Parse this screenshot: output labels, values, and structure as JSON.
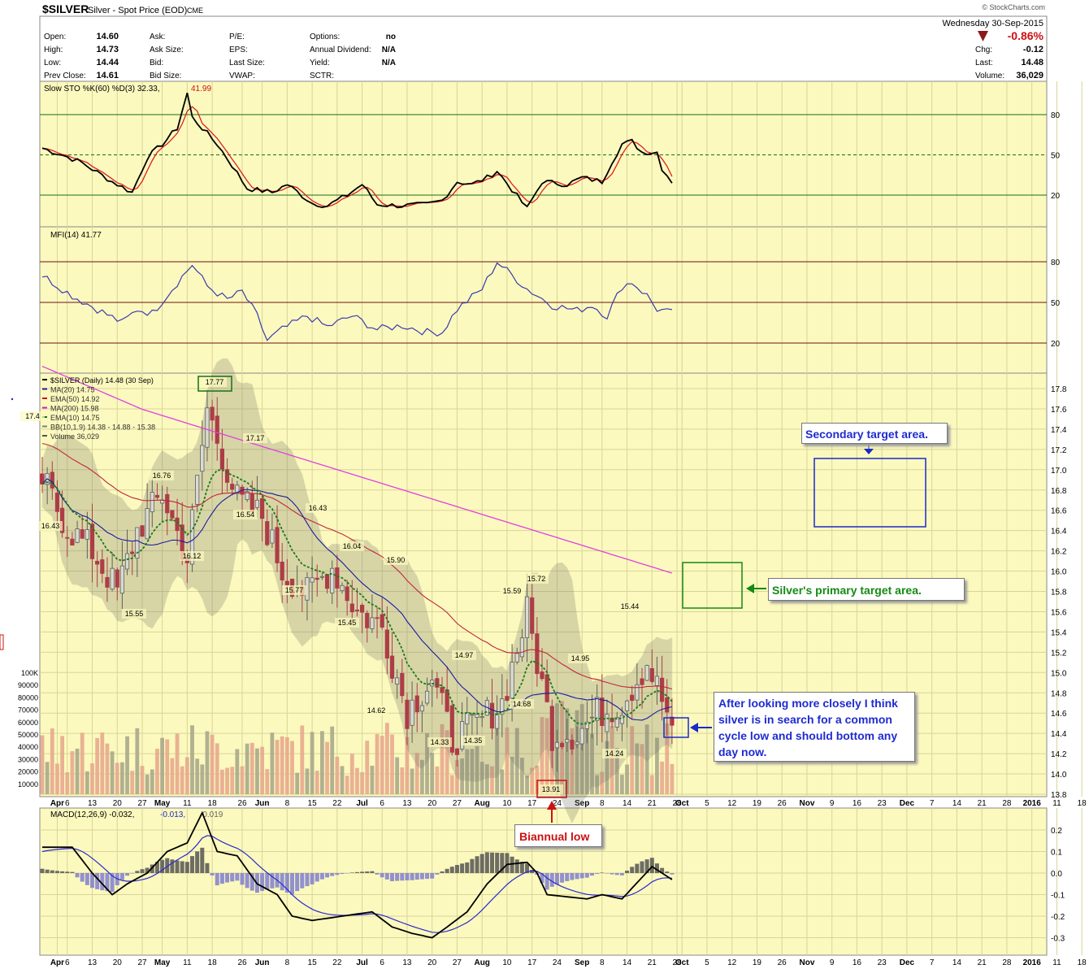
{
  "header": {
    "symbol": "$SILVER",
    "name": "Silver - Spot Price (EOD)",
    "exchange": "CME",
    "date_line": "Wednesday  30-Sep-2015",
    "watermark": "© StockCharts.com",
    "change_pct": "-0.86%",
    "quote_left": [
      {
        "label": "Open:",
        "value": "14.60"
      },
      {
        "label": "High:",
        "value": "14.73"
      },
      {
        "label": "Low:",
        "value": "14.44"
      },
      {
        "label": "Prev Close:",
        "value": "14.61"
      }
    ],
    "quote_mid": [
      "Ask:",
      "Ask Size:",
      "Bid:",
      "Bid Size:"
    ],
    "quote_mid2": [
      "P/E:",
      "EPS:",
      "Last Size:",
      "VWAP:"
    ],
    "quote_right": [
      {
        "label": "Options:",
        "value": "no"
      },
      {
        "label": "Annual Dividend:",
        "value": "N/A"
      },
      {
        "label": "Yield:",
        "value": "N/A"
      },
      {
        "label": "SCTR:",
        "value": ""
      }
    ],
    "quote_far": [
      {
        "label": "Chg:",
        "value": "-0.12"
      },
      {
        "label": "Last:",
        "value": "14.48"
      },
      {
        "label": "Volume:",
        "value": "36,029"
      }
    ]
  },
  "panels": {
    "sto": {
      "label": "Slow STO %K(60) %D(3) 32.33,",
      "label2": "41.99",
      "ticks": [
        "80",
        "50",
        "20"
      ]
    },
    "mfi": {
      "label": "MFI(14) 41.77",
      "ticks": [
        "80",
        "50",
        "20"
      ]
    },
    "main": {
      "legend": [
        {
          "text": "$SILVER (Daily) 14.48 (30 Sep)",
          "color": "#000000"
        },
        {
          "text": "MA(20) 14.75",
          "color": "#1a1aa0"
        },
        {
          "text": "EMA(50) 14.92",
          "color": "#c01a1a"
        },
        {
          "text": "MA(200) 15.98",
          "color": "#d020d0"
        },
        {
          "text": "EMA(10) 14.75",
          "color": "#167016"
        },
        {
          "text": "BB(10,1.9) 14.38 - 14.88 - 15.38",
          "color": "#808080"
        },
        {
          "text": "Volume 36,029",
          "color": "#555555"
        }
      ],
      "price_ticks": [
        "17.8",
        "17.6",
        "17.4",
        "17.2",
        "17.0",
        "16.8",
        "16.6",
        "16.4",
        "16.2",
        "16.0",
        "15.8",
        "15.6",
        "15.4",
        "15.2",
        "15.0",
        "14.8",
        "14.6",
        "14.4",
        "14.2",
        "14.0",
        "13.8"
      ],
      "volume_ticks": [
        "100K",
        "90000",
        "80000",
        "70000",
        "60000",
        "50000",
        "40000",
        "30000",
        "20000",
        "10000"
      ],
      "price_labels": [
        "16.43",
        "16.76",
        "15.55",
        "17.77",
        "16.12",
        "17.17",
        "16.54",
        "16.43",
        "15.77",
        "16.04",
        "15.45",
        "15.90",
        "14.62",
        "14.33",
        "14.97",
        "14.35",
        "15.59",
        "15.72",
        "14.68",
        "13.91",
        "14.95",
        "15.44",
        "14.24",
        "17.4"
      ]
    },
    "macd": {
      "label": "MACD(12,26,9) -0.032,",
      "label2": "-0.013,",
      "label3": "-0.019",
      "ticks": [
        "0.2",
        "0.1",
        "0.0",
        "-0.1",
        "-0.2",
        "-0.3"
      ]
    }
  },
  "x_labels": [
    "Apr",
    "6",
    "13",
    "20",
    "27",
    "May",
    "11",
    "18",
    "26",
    "Jun",
    "8",
    "15",
    "22",
    "Jul",
    "6",
    "13",
    "20",
    "27",
    "Aug",
    "10",
    "17",
    "24",
    "Sep",
    "8",
    "14",
    "21",
    "28",
    "Oct",
    "5",
    "12",
    "19",
    "26",
    "Nov",
    "9",
    "16",
    "23",
    "Dec",
    "7",
    "14",
    "21",
    "28",
    "2016",
    "11",
    "18"
  ],
  "annotations": {
    "secondary": "Secondary target area.",
    "primary": "Silver's primary target area.",
    "biannual": "Biannual low",
    "note": "After looking more closely I think silver is in search for a common cycle low and should bottom any day now."
  },
  "colors": {
    "panel_bg": "#fcf9be",
    "up": "#555555",
    "down": "#c0263a",
    "ma200": "#e040e0",
    "ema50": "#c0263a",
    "ma20": "#1a1aa0",
    "ema10": "#1b7a1b",
    "sto_k": "#000000",
    "sto_d": "#dd2020",
    "mfi": "#3a3ab0",
    "macd": "#000000",
    "signal": "#2a2ad0",
    "hist_pos": "#555555",
    "hist_neg": "#7f7fd0"
  },
  "chart_data": {
    "type": "candlestick",
    "title": "$SILVER Silver - Spot Price (EOD)",
    "y_range": [
      13.8,
      17.8
    ],
    "dates": [
      "Mar30",
      "Apr6",
      "Apr13",
      "Apr20",
      "Apr27",
      "May4",
      "May11",
      "May18",
      "May26",
      "Jun1",
      "Jun8",
      "Jun15",
      "Jun22",
      "Jun29",
      "Jul6",
      "Jul13",
      "Jul20",
      "Jul27",
      "Aug3",
      "Aug10",
      "Aug17",
      "Aug24",
      "Aug31",
      "Sep8",
      "Sep14",
      "Sep21",
      "Sep28"
    ],
    "weekly_close": [
      16.9,
      16.43,
      16.2,
      15.8,
      16.4,
      16.76,
      16.12,
      17.17,
      16.7,
      16.54,
      16.0,
      15.77,
      16.04,
      15.6,
      15.45,
      14.62,
      14.95,
      14.33,
      14.5,
      14.7,
      15.59,
      14.68,
      14.4,
      14.6,
      14.7,
      15.1,
      14.48
    ],
    "annotated_values": {
      "high_may": 17.77,
      "biannual_low": 13.91,
      "sep_high": 15.44,
      "last": 14.48
    },
    "ma200_end": 15.98,
    "secondary_target": [
      16.35,
      17.05
    ],
    "primary_target": [
      15.55,
      15.95
    ]
  }
}
